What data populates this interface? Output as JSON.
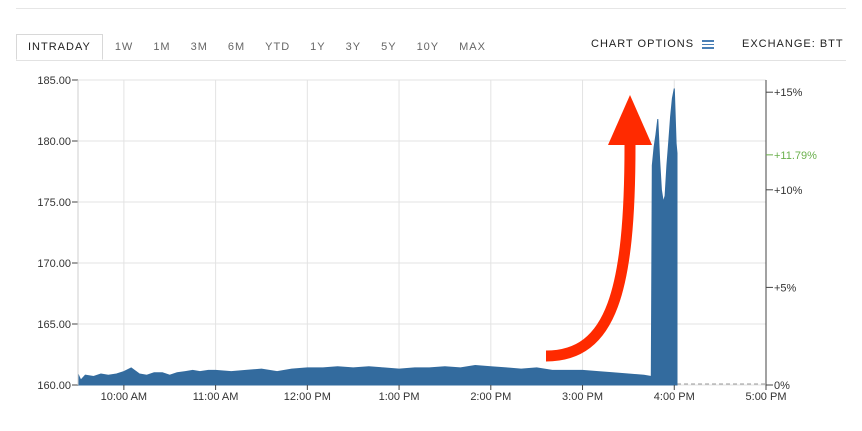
{
  "tabs": [
    {
      "label": "INTRADAY",
      "active": true
    },
    {
      "label": "1W"
    },
    {
      "label": "1M"
    },
    {
      "label": "3M"
    },
    {
      "label": "6M"
    },
    {
      "label": "YTD"
    },
    {
      "label": "1Y"
    },
    {
      "label": "3Y"
    },
    {
      "label": "5Y"
    },
    {
      "label": "10Y"
    },
    {
      "label": "MAX"
    }
  ],
  "chart_options_label": "CHART OPTIONS",
  "exchange_label": "EXCHANGE: BTT",
  "colors": {
    "area": "#336b9e",
    "highlight": "#6ab04c",
    "arrow": "#ff2a00",
    "grid": "#e3e3e3"
  },
  "chart_data": {
    "type": "area",
    "title": "",
    "xlabel": "",
    "ylabel": "",
    "ylim": [
      160,
      185
    ],
    "y_ticks": [
      "185.00",
      "180.00",
      "175.00",
      "170.00",
      "165.00",
      "160.00"
    ],
    "x_ticks": [
      "10:00 AM",
      "11:00 AM",
      "12:00 PM",
      "1:00 PM",
      "2:00 PM",
      "3:00 PM",
      "4:00 PM",
      "5:00 PM"
    ],
    "x_range_hours": [
      9.5,
      17.0
    ],
    "right_axis": {
      "ticks": [
        "+15%",
        "+10%",
        "+5%",
        "0%"
      ],
      "tick_values": [
        15,
        10,
        5,
        0
      ],
      "highlight_label": "+11.79%",
      "highlight_value": 11.79
    },
    "baseline": 160.0,
    "series": [
      {
        "x": [
          9.5,
          9.53,
          9.58,
          9.67,
          9.75,
          9.83,
          9.92,
          10.0,
          10.08,
          10.17,
          10.25,
          10.33,
          10.42,
          10.5,
          10.58,
          10.67,
          10.75,
          10.83,
          10.92,
          11.0,
          11.17,
          11.33,
          11.5,
          11.67,
          11.83,
          12.0,
          12.17,
          12.33,
          12.5,
          12.67,
          12.83,
          13.0,
          13.17,
          13.33,
          13.5,
          13.67,
          13.83,
          14.0,
          14.17,
          14.33,
          14.5,
          14.67,
          14.83,
          15.0,
          15.17,
          15.33,
          15.5,
          15.67,
          15.75,
          15.76,
          15.78,
          15.8,
          15.82,
          15.84,
          15.86,
          15.88,
          15.9,
          15.92,
          15.94,
          15.96,
          15.98,
          16.0,
          16.02,
          16.03
        ],
        "values": [
          160.9,
          160.4,
          160.8,
          160.7,
          160.9,
          160.8,
          160.9,
          161.1,
          161.4,
          160.9,
          160.8,
          161.0,
          161.0,
          160.8,
          161.0,
          161.1,
          161.2,
          161.1,
          161.2,
          161.2,
          161.1,
          161.2,
          161.3,
          161.1,
          161.3,
          161.4,
          161.4,
          161.5,
          161.4,
          161.5,
          161.4,
          161.3,
          161.4,
          161.4,
          161.5,
          161.4,
          161.6,
          161.5,
          161.4,
          161.3,
          161.4,
          161.2,
          161.2,
          161.2,
          161.1,
          161.0,
          160.9,
          160.8,
          160.7,
          178.0,
          179.5,
          180.5,
          181.8,
          178.5,
          176.0,
          175.0,
          175.5,
          178.0,
          180.0,
          182.0,
          183.5,
          184.3,
          179.8,
          179.0
        ]
      }
    ]
  }
}
